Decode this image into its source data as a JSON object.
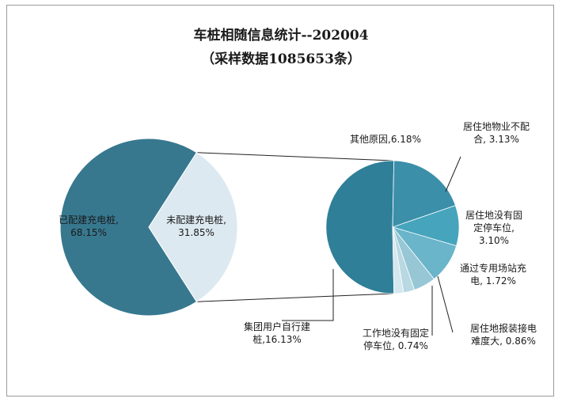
{
  "chart_data": {
    "type": "pie",
    "title": "车桩相随信息统计--202004",
    "subtitle": "（采样数据1085653条）",
    "main_pie": {
      "slices": [
        {
          "name": "已配建充电桩",
          "value": 68.15,
          "value_label": "68.15%",
          "color": "#37788f"
        },
        {
          "name": "未配建充电桩",
          "value": 31.85,
          "value_label": "31.85%",
          "color": "#dce9f0"
        }
      ]
    },
    "detail_pie": {
      "parent": "未配建充电桩",
      "slices": [
        {
          "name": "集团用户自行建桩",
          "value": 16.13,
          "value_label": "16.13%",
          "color": "#2f7f98",
          "label_lines": [
            "集团用户自行建",
            "桩,16.13%"
          ]
        },
        {
          "name": "其他原因",
          "value": 6.18,
          "value_label": "6.18%",
          "color": "#3b8fa9",
          "label_lines": [
            "其他原因,6.18%"
          ]
        },
        {
          "name": "居住地物业不配合",
          "value": 3.13,
          "value_label": "3.13%",
          "color": "#46a4bd",
          "label_lines": [
            "居住地物业不配",
            "合, 3.13%"
          ]
        },
        {
          "name": "居住地没有固定停车位",
          "value": 3.1,
          "value_label": "3.10%",
          "color": "#6ab5c9",
          "label_lines": [
            "居住地没有固",
            "定停车位,",
            "3.10%"
          ]
        },
        {
          "name": "通过专用场站充电",
          "value": 1.72,
          "value_label": "1.72%",
          "color": "#97c7d5",
          "label_lines": [
            "通过专用场站充",
            "电, 1.72%"
          ]
        },
        {
          "name": "居住地报装接电难度大",
          "value": 0.86,
          "value_label": "0.86%",
          "color": "#b8d8e2",
          "label_lines": [
            "居住地报装接电",
            "难度大, 0.86%"
          ]
        },
        {
          "name": "工作地没有固定停车位",
          "value": 0.74,
          "value_label": "0.74%",
          "color": "#d5e7ee",
          "label_lines": [
            "工作地没有固定",
            "停车位, 0.74%"
          ]
        }
      ]
    }
  }
}
